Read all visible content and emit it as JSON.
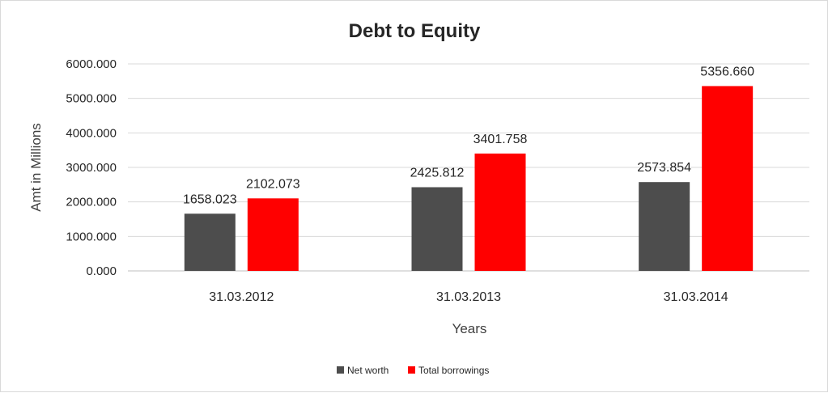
{
  "chart_data": {
    "type": "bar",
    "title": "Debt to Equity",
    "xlabel": "Years",
    "ylabel": "Amt in Millions",
    "categories": [
      "31.03.2012",
      "31.03.2013",
      "31.03.2014"
    ],
    "series": [
      {
        "name": "Net worth",
        "color": "#4d4d4d",
        "values": [
          1658.023,
          2425.812,
          2573.854
        ],
        "labels": [
          "1658.023",
          "2425.812",
          "2573.854"
        ]
      },
      {
        "name": "Total borrowings",
        "color": "#ff0000",
        "values": [
          2102.073,
          3401.758,
          5356.66
        ],
        "labels": [
          "2102.073",
          "3401.758",
          "5356.660"
        ]
      }
    ],
    "ylim": [
      0,
      6000
    ],
    "yticks": [
      0,
      1000,
      2000,
      3000,
      4000,
      5000,
      6000
    ],
    "ytick_labels": [
      "0.000",
      "1000.000",
      "2000.000",
      "3000.000",
      "4000.000",
      "5000.000",
      "6000.000"
    ],
    "grid": true,
    "legend_position": "bottom"
  }
}
